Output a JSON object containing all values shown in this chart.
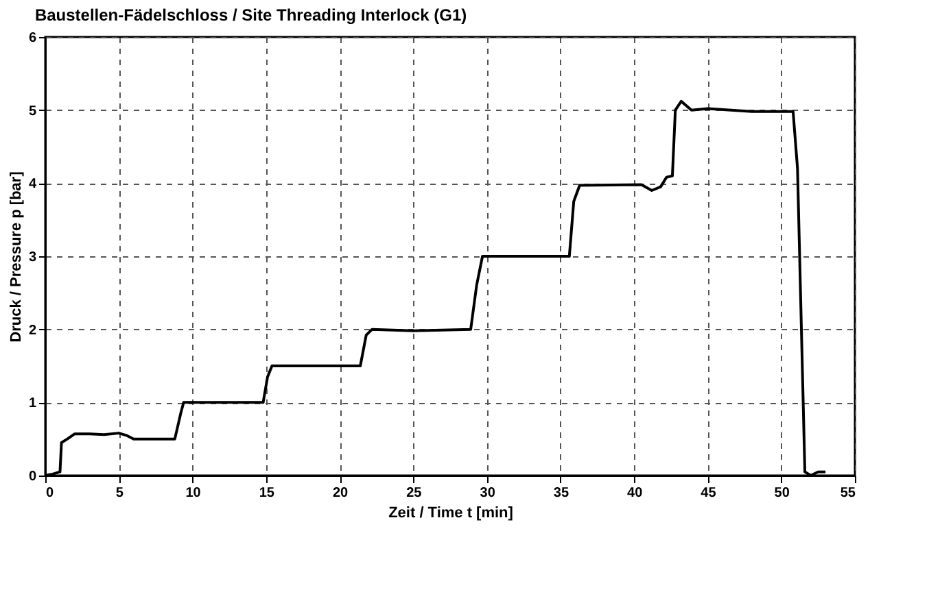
{
  "chart_data": {
    "type": "line",
    "title": "Baustellen-Fädelschloss / Site Threading Interlock  (G1)",
    "xlabel": "Zeit / Time  t [min]",
    "ylabel": "Druck / Pressure  p [bar]",
    "x": [
      0,
      0.5,
      1,
      1.1,
      1.5,
      2,
      3,
      4,
      5,
      5.5,
      6,
      8.8,
      9.2,
      9.4,
      14.8,
      15.1,
      15.4,
      21.4,
      21.8,
      22.2,
      25,
      28.9,
      29.3,
      29.7,
      35.6,
      35.9,
      36.3,
      40.5,
      41.2,
      41.8,
      42.2,
      42.6,
      42.8,
      43.2,
      43.9,
      45,
      48,
      50.8,
      51.1,
      51.6,
      52,
      52.5,
      53
    ],
    "series": [
      {
        "color": "#000000",
        "values": [
          0,
          0.02,
          0.05,
          0.45,
          0.5,
          0.57,
          0.57,
          0.56,
          0.58,
          0.55,
          0.5,
          0.5,
          0.85,
          1.0,
          1.0,
          1.35,
          1.5,
          1.5,
          1.92,
          2.0,
          1.98,
          2.0,
          2.6,
          3.0,
          3.0,
          3.75,
          3.97,
          3.98,
          3.9,
          3.95,
          4.08,
          4.1,
          5.0,
          5.12,
          5.0,
          5.02,
          4.98,
          4.98,
          4.2,
          0.05,
          0.0,
          0.05,
          0.05
        ]
      }
    ],
    "xlim": [
      0,
      55
    ],
    "xticks": [
      0,
      5,
      10,
      15,
      20,
      25,
      30,
      35,
      40,
      45,
      50,
      55
    ],
    "ylim": [
      0,
      6
    ],
    "yticks": [
      0,
      1,
      2,
      3,
      4,
      5,
      6
    ],
    "grid": true,
    "marker": "none",
    "line_style": "solid"
  }
}
